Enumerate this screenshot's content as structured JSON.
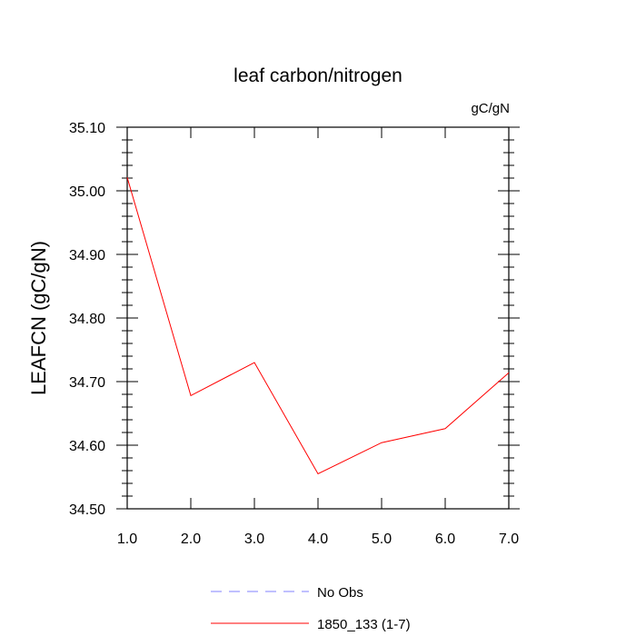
{
  "chart_data": {
    "type": "line",
    "title": "leaf carbon/nitrogen",
    "units": "gC/gN",
    "ylabel": "LEAFCN  (gC/gN)",
    "xlabel": "",
    "xlim": [
      1.0,
      7.0
    ],
    "ylim": [
      34.5,
      35.1
    ],
    "x_ticks": [
      "1.0",
      "2.0",
      "3.0",
      "4.0",
      "5.0",
      "6.0",
      "7.0"
    ],
    "y_ticks": [
      "34.50",
      "34.60",
      "34.70",
      "34.80",
      "34.90",
      "35.00",
      "35.10"
    ],
    "grid": false,
    "legend_position": "bottom",
    "series": [
      {
        "name": "1850_133 (1-7)",
        "color": "#ff0000",
        "style": "solid",
        "x": [
          1,
          2,
          3,
          4,
          5,
          6,
          7
        ],
        "y": [
          35.021,
          34.678,
          34.73,
          34.555,
          34.604,
          34.626,
          34.714
        ]
      }
    ],
    "legend": [
      {
        "label": "No Obs",
        "color": "#8080ff",
        "style": "dashed"
      },
      {
        "label": "1850_133 (1-7)",
        "color": "#ff0000",
        "style": "solid"
      }
    ]
  }
}
